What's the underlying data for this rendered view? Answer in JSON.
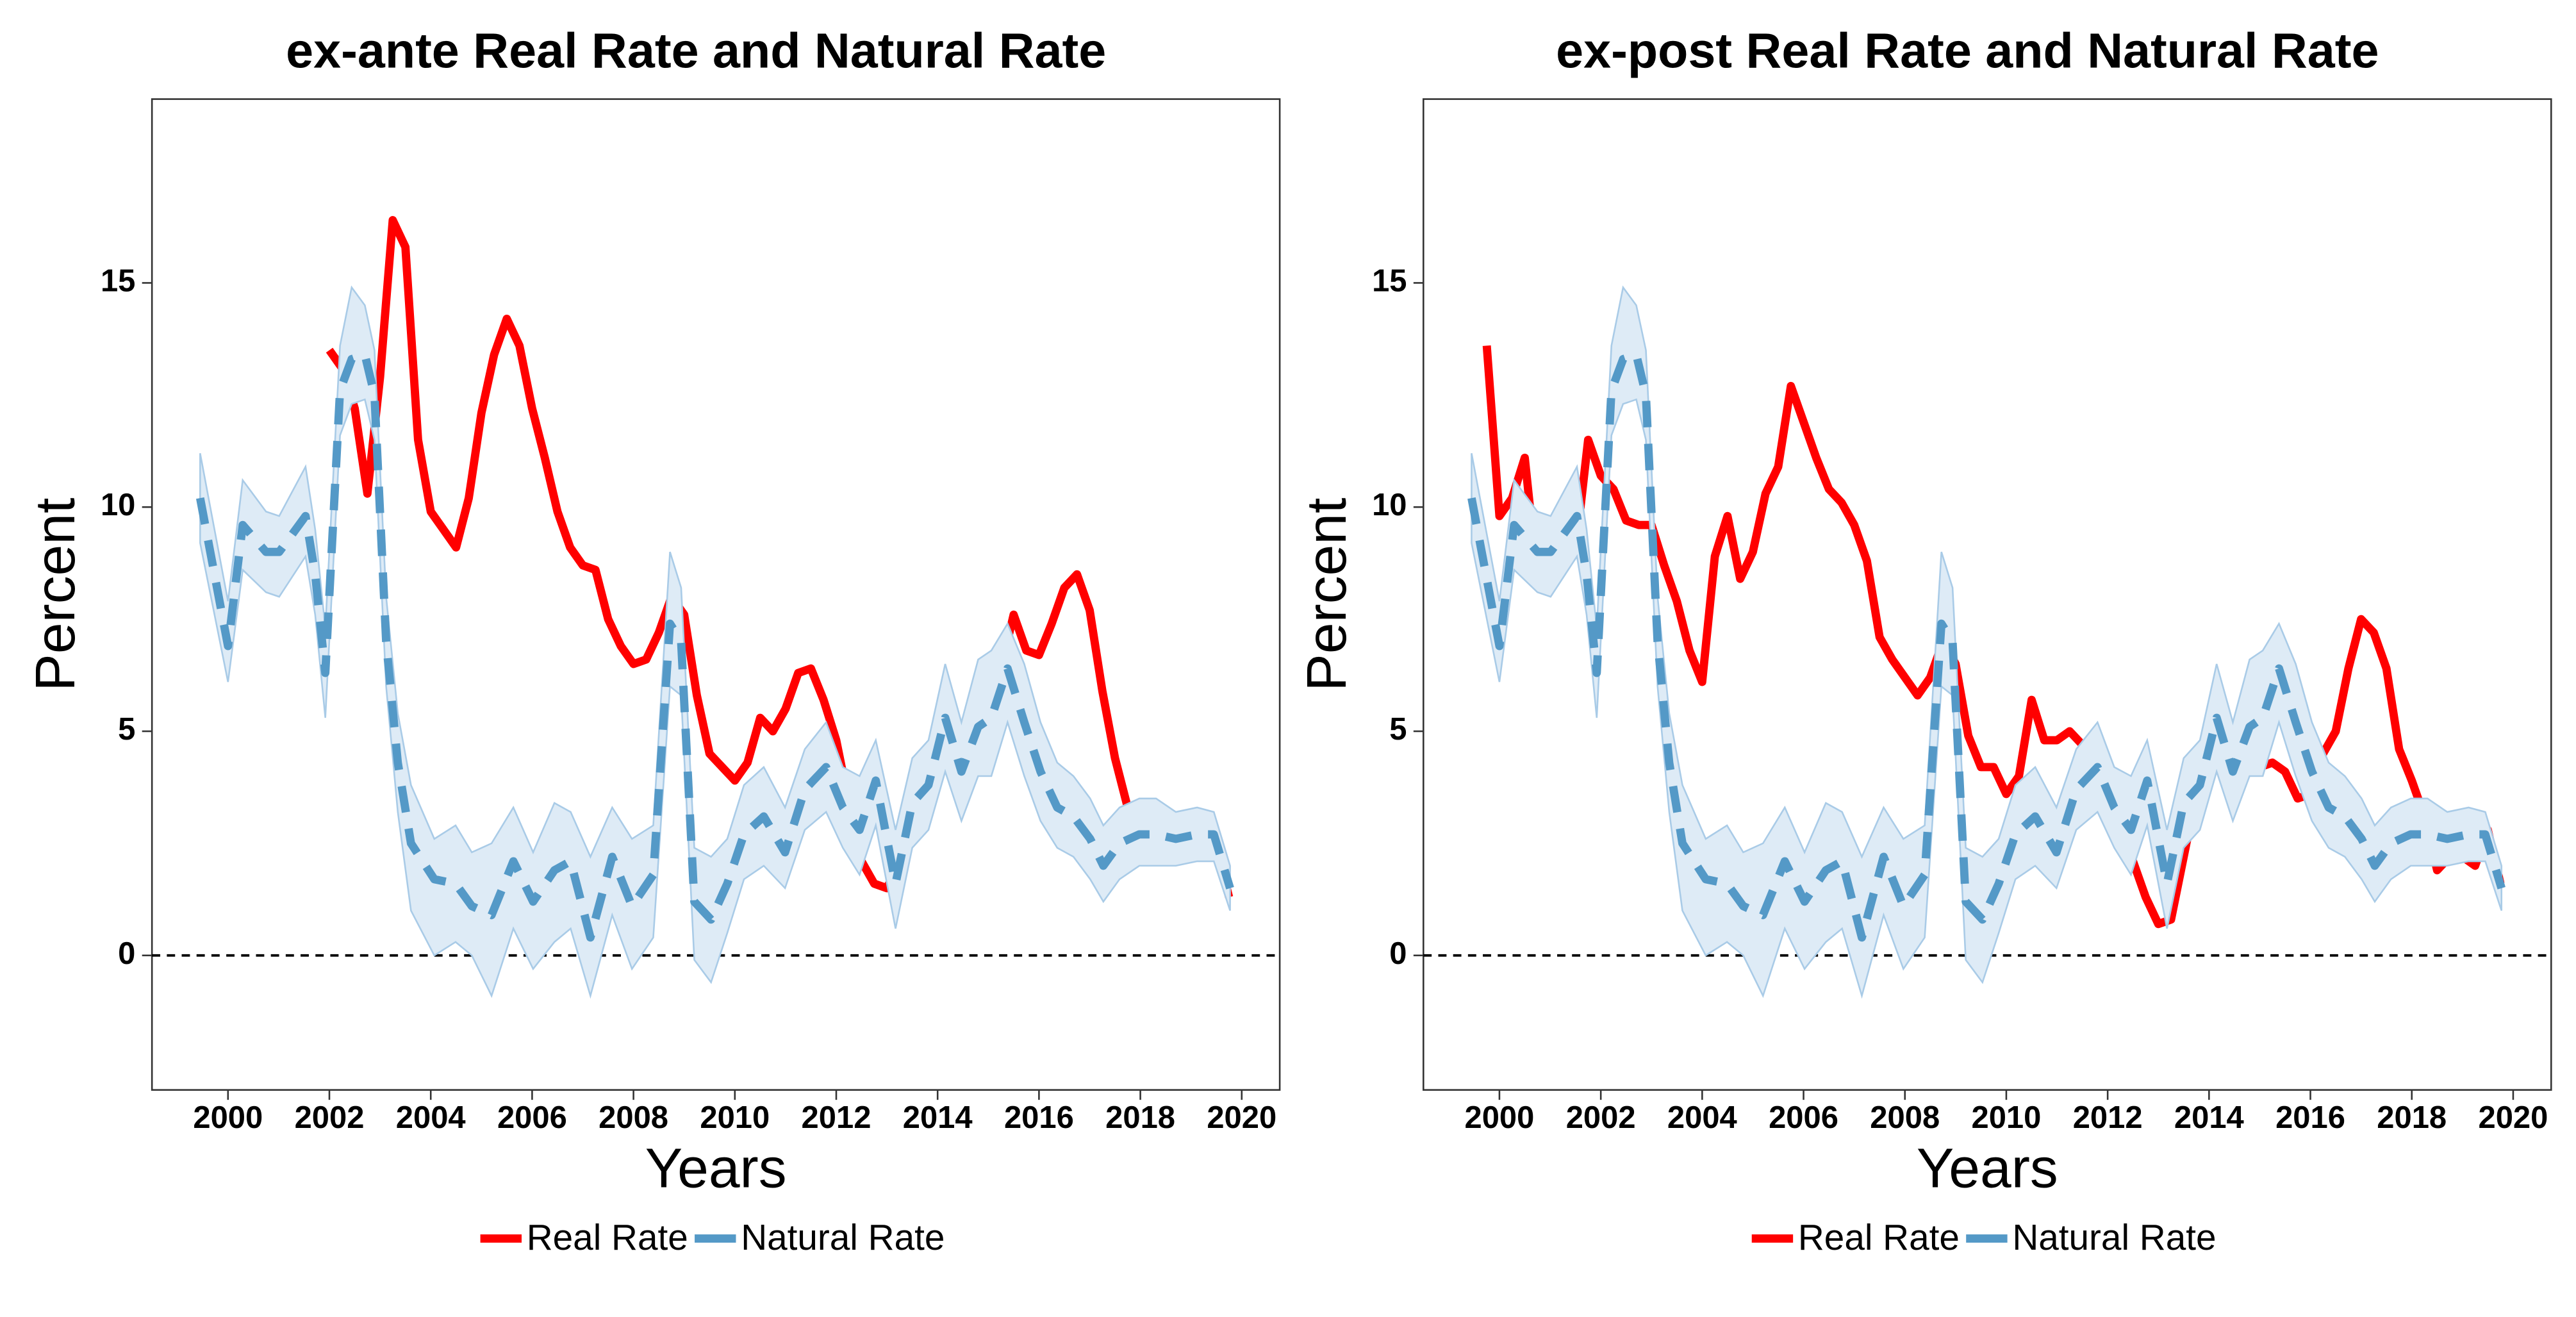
{
  "chart_data": [
    {
      "type": "line",
      "title": "ex-ante Real Rate and Natural Rate",
      "xlabel": "Years",
      "ylabel": "Percent",
      "xlim": [
        1998.5,
        2020.75
      ],
      "xticks": [
        2000,
        2002,
        2004,
        2006,
        2008,
        2010,
        2012,
        2014,
        2016,
        2018,
        2020
      ],
      "ylim": [
        -3,
        19.1
      ],
      "yticks": [
        0,
        5,
        10,
        15
      ],
      "reference_line": 0,
      "legend": "bottom",
      "series": [
        {
          "name": "Real Rate",
          "color": "#ff0000",
          "x": [
            2002.0,
            2002.25,
            2002.5,
            2002.75,
            2003.0,
            2003.25,
            2003.5,
            2003.75,
            2004.0,
            2004.25,
            2004.5,
            2004.75,
            2005.0,
            2005.25,
            2005.5,
            2005.75,
            2006.0,
            2006.25,
            2006.5,
            2006.75,
            2007.0,
            2007.25,
            2007.5,
            2007.75,
            2008.0,
            2008.25,
            2008.5,
            2008.75,
            2009.0,
            2009.25,
            2009.5,
            2009.75,
            2010.0,
            2010.25,
            2010.5,
            2010.75,
            2011.0,
            2011.25,
            2011.5,
            2011.75,
            2012.0,
            2012.25,
            2012.5,
            2012.75,
            2013.0,
            2013.25,
            2013.5,
            2013.75,
            2014.0,
            2014.25,
            2014.5,
            2014.75,
            2015.0,
            2015.25,
            2015.5,
            2015.75,
            2016.0,
            2016.25,
            2016.5,
            2016.75,
            2017.0,
            2017.25,
            2017.5,
            2017.75,
            2018.0,
            2018.25,
            2018.5,
            2018.75,
            2019.0,
            2019.25,
            2019.5,
            2019.75
          ],
          "values": [
            13.5,
            13.1,
            12.2,
            10.3,
            12.9,
            16.4,
            15.8,
            11.5,
            9.9,
            9.5,
            9.1,
            10.2,
            12.1,
            13.4,
            14.2,
            13.6,
            12.2,
            11.1,
            9.9,
            9.1,
            8.7,
            8.6,
            7.5,
            6.9,
            6.5,
            6.6,
            7.2,
            8.0,
            7.6,
            5.8,
            4.5,
            4.2,
            3.9,
            4.3,
            5.3,
            5.0,
            5.5,
            6.3,
            6.4,
            5.7,
            4.8,
            3.4,
            2.1,
            1.6,
            1.5,
            2.1,
            2.8,
            3.5,
            4.0,
            4.5,
            4.5,
            4.4,
            5.3,
            6.4,
            7.6,
            6.8,
            6.7,
            7.4,
            8.2,
            8.5,
            7.7,
            5.9,
            4.4,
            3.3,
            2.8,
            2.1,
            2.4,
            2.5,
            2.4,
            2.6,
            2.4,
            1.3
          ]
        },
        {
          "name": "Natural Rate",
          "color": "#5499c7",
          "dashed": true,
          "band_color": "#deebf6",
          "x": [
            1999.45,
            2000.0,
            2000.29,
            2000.75,
            2001.01,
            2001.53,
            2001.72,
            2001.92,
            2002.21,
            2002.44,
            2002.7,
            2002.89,
            2003.12,
            2003.35,
            2003.61,
            2004.07,
            2004.49,
            2004.81,
            2005.2,
            2005.63,
            2006.02,
            2006.44,
            2006.76,
            2007.15,
            2007.58,
            2007.97,
            2008.39,
            2008.72,
            2008.94,
            2009.2,
            2009.53,
            2009.85,
            2010.18,
            2010.57,
            2010.99,
            2011.38,
            2011.8,
            2012.13,
            2012.46,
            2012.78,
            2013.17,
            2013.5,
            2013.82,
            2014.15,
            2014.47,
            2014.8,
            2015.06,
            2015.38,
            2015.71,
            2016.03,
            2016.36,
            2016.68,
            2017.01,
            2017.27,
            2017.59,
            2017.98,
            2018.31,
            2018.7,
            2019.12,
            2019.45,
            2019.77
          ],
          "values": [
            10.2,
            6.9,
            9.6,
            9.0,
            9.0,
            9.8,
            8.5,
            6.3,
            12.6,
            13.3,
            13.4,
            12.5,
            7.0,
            4.3,
            2.5,
            1.7,
            1.6,
            1.1,
            0.9,
            2.1,
            1.2,
            1.9,
            2.1,
            0.4,
            2.2,
            1.1,
            1.8,
            7.4,
            7.0,
            1.2,
            0.8,
            1.6,
            2.7,
            3.1,
            2.3,
            3.7,
            4.2,
            3.3,
            2.8,
            3.9,
            1.6,
            3.4,
            3.8,
            5.3,
            4.1,
            5.1,
            5.3,
            6.4,
            5.2,
            4.1,
            3.3,
            3.1,
            2.6,
            2.0,
            2.5,
            2.7,
            2.7,
            2.6,
            2.7,
            2.7,
            1.5
          ],
          "lower": [
            9.2,
            6.1,
            8.6,
            8.1,
            8.0,
            8.9,
            7.6,
            5.3,
            11.6,
            12.3,
            12.4,
            11.5,
            6.0,
            3.2,
            1.0,
            0.0,
            0.3,
            0.0,
            -0.9,
            0.6,
            -0.3,
            0.3,
            0.6,
            -0.9,
            0.9,
            -0.3,
            0.4,
            6.0,
            5.8,
            -0.1,
            -0.6,
            0.5,
            1.7,
            2.0,
            1.5,
            2.8,
            3.2,
            2.4,
            1.8,
            2.9,
            0.6,
            2.4,
            2.8,
            4.1,
            3.0,
            4.0,
            4.0,
            5.2,
            4.0,
            3.0,
            2.4,
            2.2,
            1.7,
            1.2,
            1.7,
            2.0,
            2.0,
            2.0,
            2.1,
            2.1,
            1.0
          ],
          "upper": [
            11.2,
            7.9,
            10.6,
            9.9,
            9.8,
            10.9,
            9.5,
            7.3,
            13.6,
            14.9,
            14.5,
            13.5,
            8.0,
            5.4,
            3.8,
            2.6,
            2.9,
            2.3,
            2.5,
            3.3,
            2.3,
            3.4,
            3.2,
            2.2,
            3.3,
            2.6,
            2.9,
            9.0,
            8.2,
            2.4,
            2.2,
            2.6,
            3.8,
            4.2,
            3.3,
            4.6,
            5.2,
            4.2,
            4.0,
            4.8,
            2.8,
            4.4,
            4.8,
            6.5,
            5.2,
            6.6,
            6.8,
            7.4,
            6.5,
            5.2,
            4.3,
            4.0,
            3.5,
            2.9,
            3.3,
            3.5,
            3.5,
            3.2,
            3.3,
            3.2,
            2.0
          ]
        }
      ]
    },
    {
      "type": "line",
      "title": "ex-post Real Rate and Natural Rate",
      "xlabel": "Years",
      "ylabel": "Percent",
      "xlim": [
        1998.5,
        2020.75
      ],
      "xticks": [
        2000,
        2002,
        2004,
        2006,
        2008,
        2010,
        2012,
        2014,
        2016,
        2018,
        2020
      ],
      "ylim": [
        -3,
        19.1
      ],
      "yticks": [
        0,
        5,
        10,
        15
      ],
      "reference_line": 0,
      "legend": "bottom",
      "series": [
        {
          "name": "Real Rate",
          "color": "#ff0000",
          "x": [
            1999.75,
            2000.0,
            2000.25,
            2000.5,
            2000.75,
            2001.0,
            2001.25,
            2001.5,
            2001.75,
            2002.0,
            2002.25,
            2002.5,
            2002.75,
            2003.0,
            2003.25,
            2003.5,
            2003.75,
            2004.0,
            2004.25,
            2004.5,
            2004.75,
            2005.0,
            2005.25,
            2005.5,
            2005.75,
            2006.0,
            2006.25,
            2006.5,
            2006.75,
            2007.0,
            2007.25,
            2007.5,
            2007.75,
            2008.0,
            2008.25,
            2008.5,
            2008.75,
            2009.0,
            2009.25,
            2009.5,
            2009.75,
            2010.0,
            2010.25,
            2010.5,
            2010.75,
            2011.0,
            2011.25,
            2011.5,
            2011.75,
            2012.0,
            2012.25,
            2012.5,
            2012.75,
            2013.0,
            2013.25,
            2013.5,
            2013.75,
            2014.0,
            2014.25,
            2014.5,
            2014.75,
            2015.0,
            2015.25,
            2015.5,
            2015.75,
            2016.0,
            2016.25,
            2016.5,
            2016.75,
            2017.0,
            2017.25,
            2017.5,
            2017.75,
            2018.0,
            2018.25,
            2018.5,
            2018.75,
            2019.0,
            2019.25,
            2019.5,
            2019.75
          ],
          "values": [
            13.6,
            9.8,
            10.2,
            11.1,
            8.4,
            9.6,
            8.6,
            9.0,
            11.5,
            10.7,
            10.4,
            9.7,
            9.6,
            9.6,
            8.7,
            7.9,
            6.8,
            6.1,
            8.9,
            9.8,
            8.4,
            9.0,
            10.3,
            10.9,
            12.7,
            11.9,
            11.1,
            10.4,
            10.1,
            9.6,
            8.8,
            7.1,
            6.6,
            6.2,
            5.8,
            6.2,
            7.0,
            6.5,
            4.9,
            4.2,
            4.2,
            3.6,
            4.0,
            5.7,
            4.8,
            4.8,
            5.0,
            4.7,
            4.4,
            4.1,
            3.2,
            2.1,
            1.3,
            0.7,
            0.8,
            2.2,
            3.6,
            4.3,
            4.2,
            4.1,
            4.4,
            4.2,
            4.3,
            4.1,
            3.5,
            3.6,
            4.5,
            5.0,
            6.4,
            7.5,
            7.2,
            6.4,
            4.6,
            3.9,
            3.1,
            1.9,
            2.2,
            2.2,
            2.0,
            2.8,
            1.6
          ]
        },
        {
          "name": "Natural Rate",
          "color": "#5499c7",
          "dashed": true,
          "band_color": "#deebf6",
          "x": [
            1999.45,
            2000.0,
            2000.29,
            2000.75,
            2001.01,
            2001.53,
            2001.72,
            2001.92,
            2002.21,
            2002.44,
            2002.7,
            2002.89,
            2003.12,
            2003.35,
            2003.61,
            2004.07,
            2004.49,
            2004.81,
            2005.2,
            2005.63,
            2006.02,
            2006.44,
            2006.76,
            2007.15,
            2007.58,
            2007.97,
            2008.39,
            2008.72,
            2008.94,
            2009.2,
            2009.53,
            2009.85,
            2010.18,
            2010.57,
            2010.99,
            2011.38,
            2011.8,
            2012.13,
            2012.46,
            2012.78,
            2013.17,
            2013.5,
            2013.82,
            2014.15,
            2014.47,
            2014.8,
            2015.06,
            2015.38,
            2015.71,
            2016.03,
            2016.36,
            2016.68,
            2017.01,
            2017.27,
            2017.59,
            2017.98,
            2018.31,
            2018.7,
            2019.12,
            2019.45,
            2019.77
          ],
          "values": [
            10.2,
            6.9,
            9.6,
            9.0,
            9.0,
            9.8,
            8.5,
            6.3,
            12.6,
            13.3,
            13.4,
            12.5,
            7.0,
            4.3,
            2.5,
            1.7,
            1.6,
            1.1,
            0.9,
            2.1,
            1.2,
            1.9,
            2.1,
            0.4,
            2.2,
            1.1,
            1.8,
            7.4,
            7.0,
            1.2,
            0.8,
            1.6,
            2.7,
            3.1,
            2.3,
            3.7,
            4.2,
            3.3,
            2.8,
            3.9,
            1.6,
            3.4,
            3.8,
            5.3,
            4.1,
            5.1,
            5.3,
            6.4,
            5.2,
            4.1,
            3.3,
            3.1,
            2.6,
            2.0,
            2.5,
            2.7,
            2.7,
            2.6,
            2.7,
            2.7,
            1.5
          ],
          "lower": [
            9.2,
            6.1,
            8.6,
            8.1,
            8.0,
            8.9,
            7.6,
            5.3,
            11.6,
            12.3,
            12.4,
            11.5,
            6.0,
            3.2,
            1.0,
            0.0,
            0.3,
            0.0,
            -0.9,
            0.6,
            -0.3,
            0.3,
            0.6,
            -0.9,
            0.9,
            -0.3,
            0.4,
            6.0,
            5.8,
            -0.1,
            -0.6,
            0.5,
            1.7,
            2.0,
            1.5,
            2.8,
            3.2,
            2.4,
            1.8,
            2.9,
            0.6,
            2.4,
            2.8,
            4.1,
            3.0,
            4.0,
            4.0,
            5.2,
            4.0,
            3.0,
            2.4,
            2.2,
            1.7,
            1.2,
            1.7,
            2.0,
            2.0,
            2.0,
            2.1,
            2.1,
            1.0
          ],
          "upper": [
            11.2,
            7.9,
            10.6,
            9.9,
            9.8,
            10.9,
            9.5,
            7.3,
            13.6,
            14.9,
            14.5,
            13.5,
            8.0,
            5.4,
            3.8,
            2.6,
            2.9,
            2.3,
            2.5,
            3.3,
            2.3,
            3.4,
            3.2,
            2.2,
            3.3,
            2.6,
            2.9,
            9.0,
            8.2,
            2.4,
            2.2,
            2.6,
            3.8,
            4.2,
            3.3,
            4.6,
            5.2,
            4.2,
            4.0,
            4.8,
            2.8,
            4.4,
            4.8,
            6.5,
            5.2,
            6.6,
            6.8,
            7.4,
            6.5,
            5.2,
            4.3,
            4.0,
            3.5,
            2.9,
            3.3,
            3.5,
            3.5,
            3.2,
            3.3,
            3.2,
            2.0
          ]
        }
      ]
    }
  ]
}
